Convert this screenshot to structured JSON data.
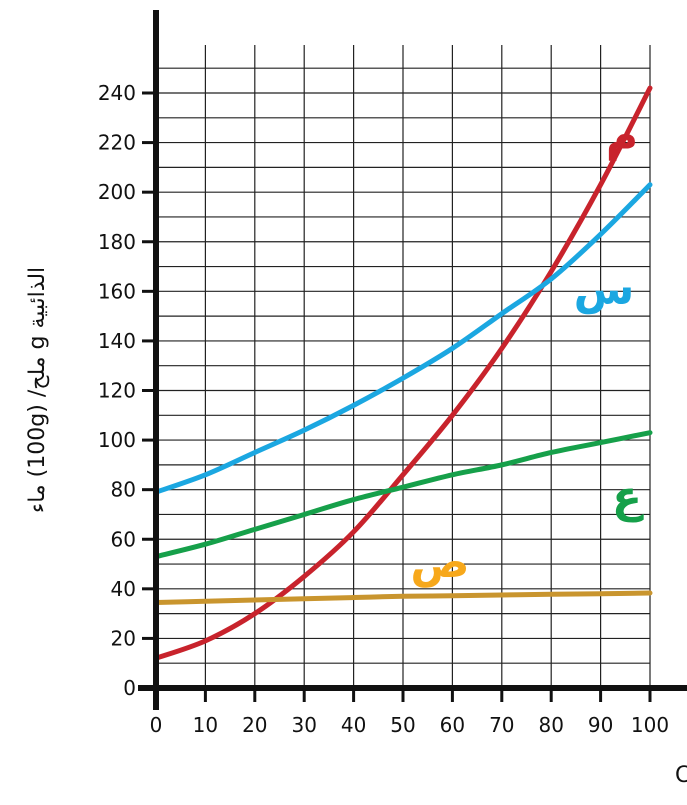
{
  "chart_data": {
    "type": "line",
    "xlabel": "درجة الحرارة °C",
    "ylabel": "الذائبية g ملح/ (100g) ماء",
    "xlim": [
      0,
      100
    ],
    "ylim": [
      0,
      250
    ],
    "x_ticks": [
      0,
      10,
      20,
      30,
      40,
      50,
      60,
      70,
      80,
      90,
      100
    ],
    "y_ticks": [
      0,
      20,
      40,
      60,
      80,
      100,
      120,
      140,
      160,
      180,
      200,
      220,
      240
    ],
    "grid": true,
    "series": [
      {
        "name": "م",
        "color": "#c8232c",
        "x": [
          0,
          10,
          20,
          30,
          40,
          50,
          60,
          70,
          80,
          90,
          100
        ],
        "y": [
          12,
          19,
          30,
          45,
          63,
          86,
          110,
          137,
          168,
          203,
          242
        ]
      },
      {
        "name": "س",
        "color": "#1ba7e1",
        "x": [
          0,
          10,
          20,
          30,
          40,
          50,
          60,
          70,
          80,
          90,
          100
        ],
        "y": [
          79,
          86,
          95,
          104,
          114,
          125,
          137,
          151,
          165,
          183,
          203
        ]
      },
      {
        "name": "ع",
        "color": "#16a04a",
        "x": [
          0,
          10,
          20,
          30,
          40,
          50,
          60,
          70,
          80,
          90,
          100
        ],
        "y": [
          53,
          58,
          64,
          70,
          76,
          81,
          86,
          90,
          95,
          99,
          103
        ]
      },
      {
        "name": "ص",
        "color": "#c9952e",
        "label_color": "#f7a81b",
        "x": [
          0,
          10,
          20,
          30,
          40,
          50,
          60,
          70,
          80,
          90,
          100
        ],
        "y": [
          34.5,
          35,
          35.5,
          36,
          36.5,
          37,
          37.2,
          37.5,
          37.8,
          38,
          38.3
        ]
      }
    ]
  }
}
